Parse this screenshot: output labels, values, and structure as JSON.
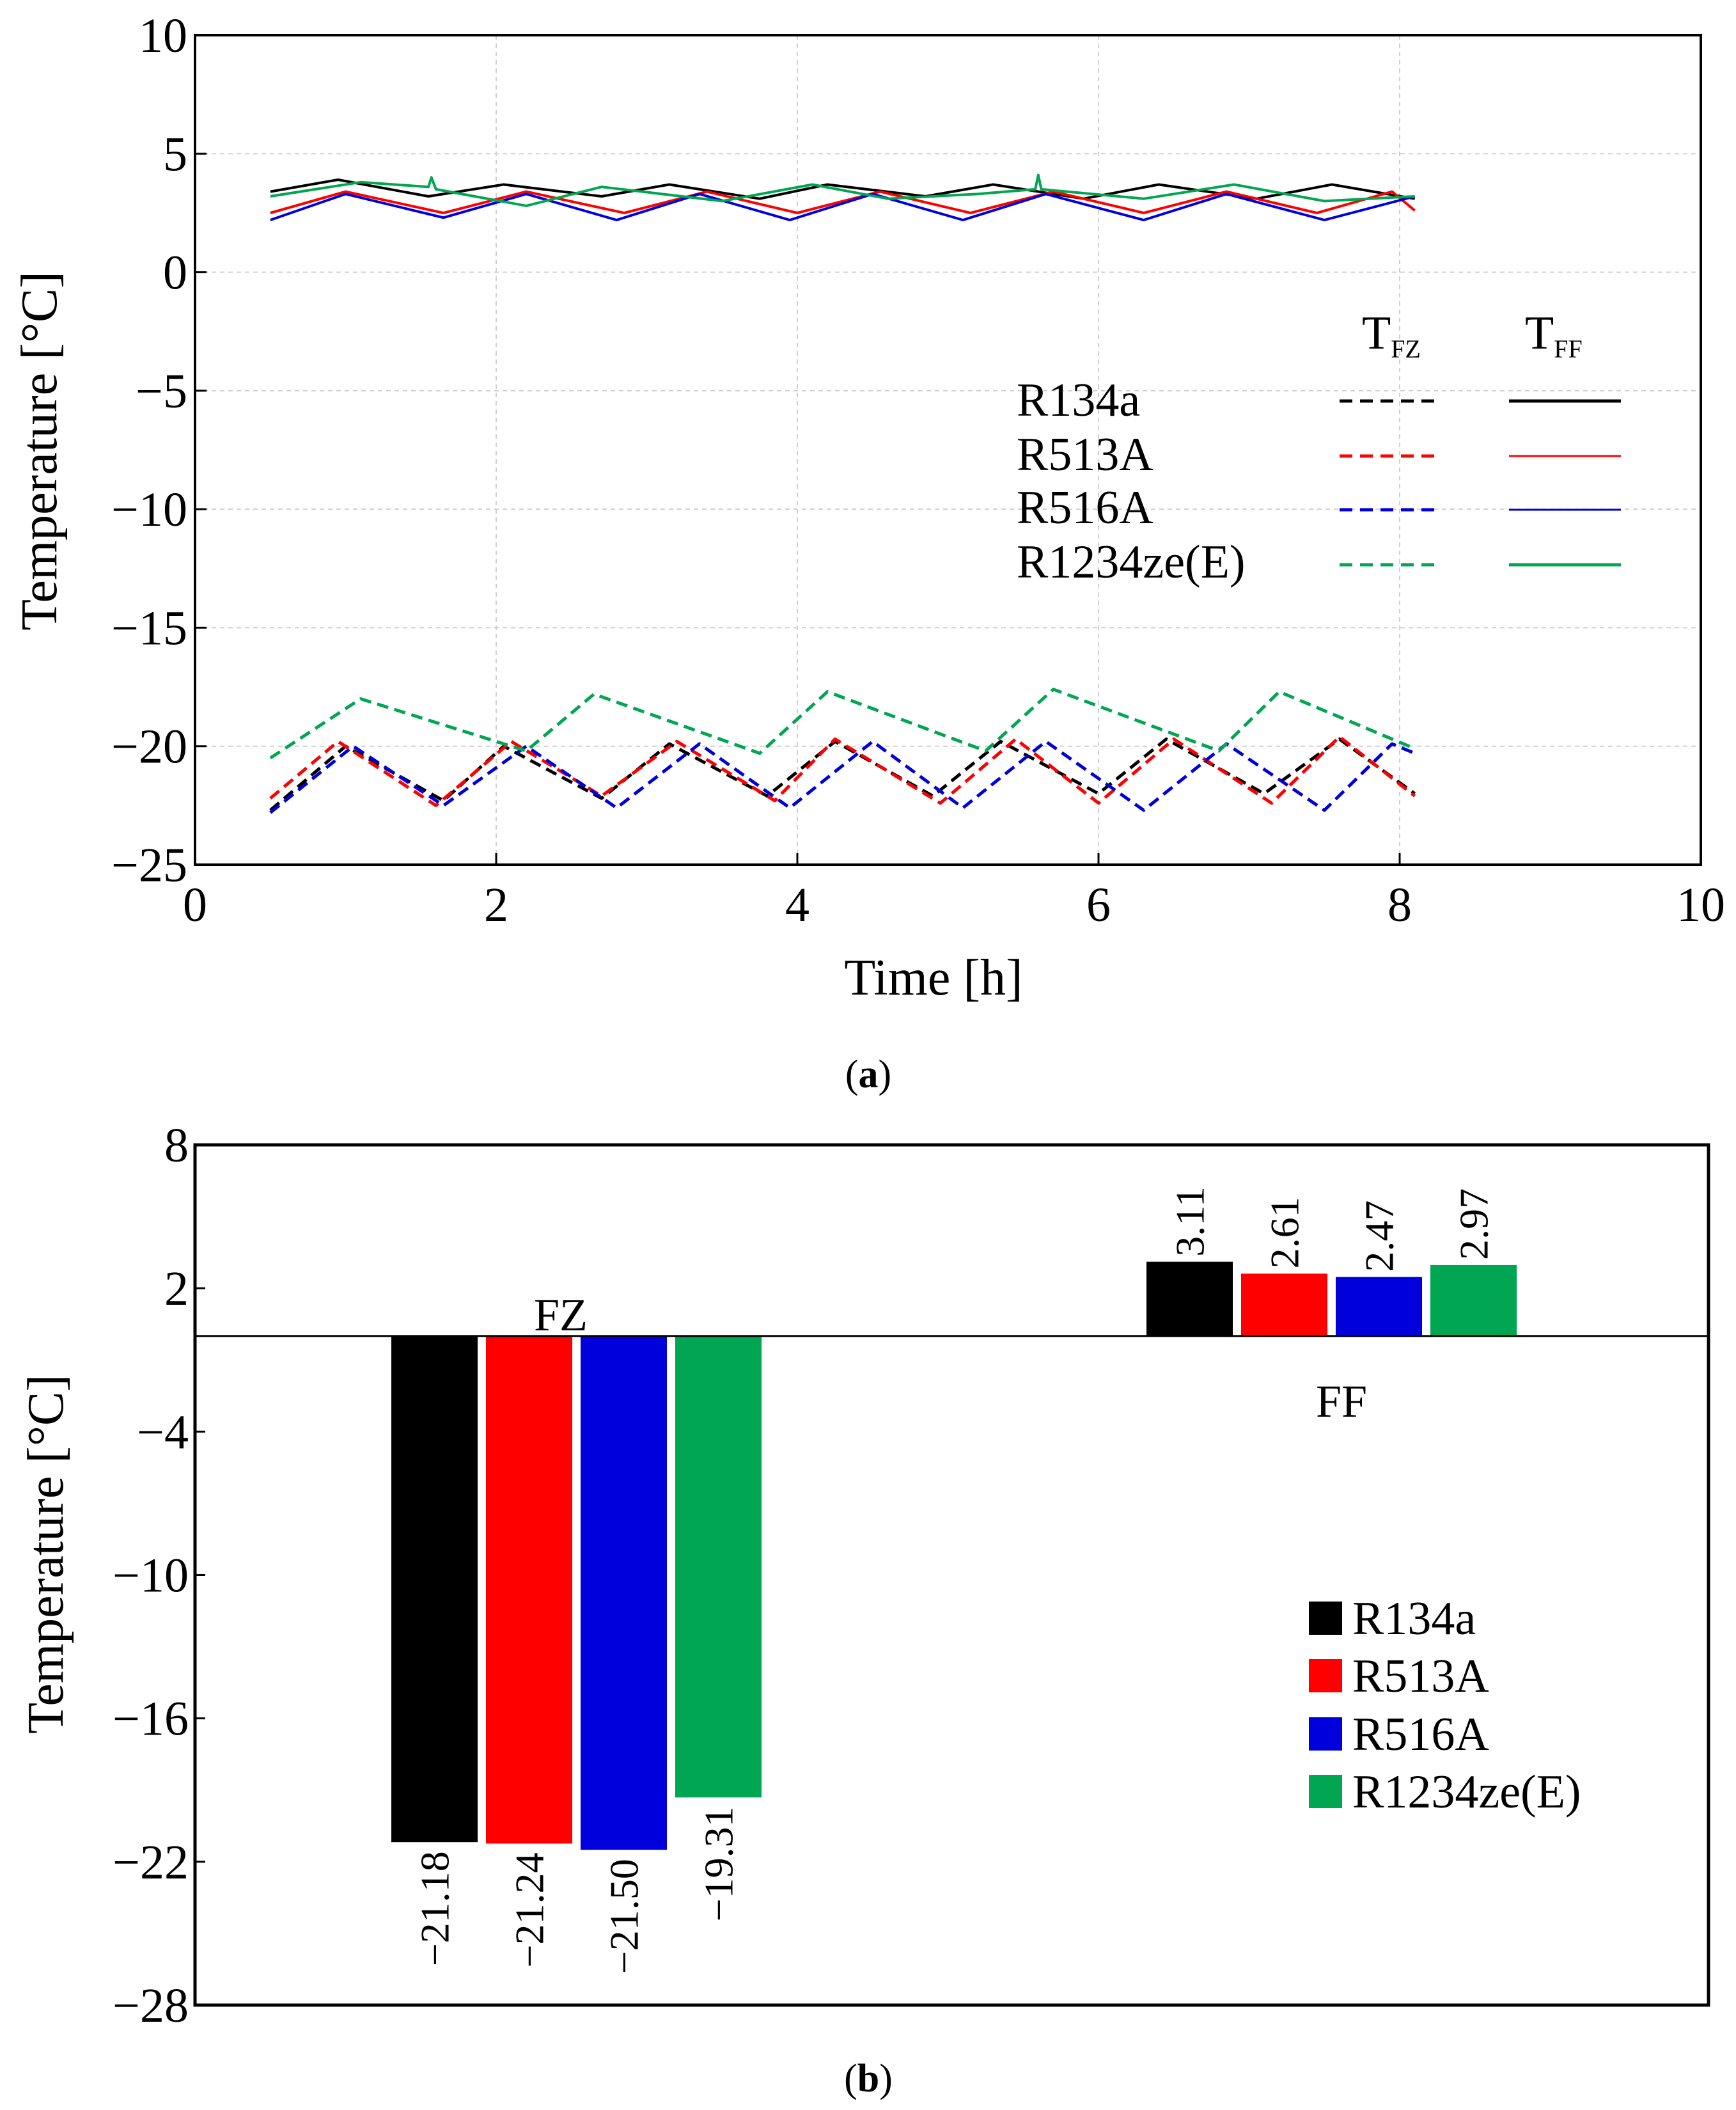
{
  "chart_data": [
    {
      "panel": "(a)",
      "panel_letter": "a",
      "type": "line",
      "xlabel": "Time [h]",
      "ylabel": "Temperature [°C]",
      "xlim": [
        0,
        10
      ],
      "ylim": [
        -25,
        10
      ],
      "xticks": [
        "0",
        "2",
        "4",
        "6",
        "8",
        "10"
      ],
      "yticks": [
        "10",
        "5",
        "0",
        "−5",
        "−10",
        "−15",
        "−20",
        "−25"
      ],
      "grid": true,
      "legend": {
        "position": "right",
        "col_headers": [
          {
            "main": "T",
            "sub": "FZ"
          },
          {
            "main": "T",
            "sub": "FF"
          }
        ],
        "entries": [
          "R134a",
          "R513A",
          "R516A",
          "R1234ze(E)"
        ],
        "colors": [
          "#000000",
          "#ff0000",
          "#0000dd",
          "#00a651"
        ]
      },
      "series": [
        {
          "name": "R134a",
          "compartment": "FF",
          "style": "solid",
          "color": "#000000",
          "x": [
            0.5,
            0.95,
            1.55,
            2.05,
            2.7,
            3.15,
            3.75,
            4.2,
            4.85,
            5.3,
            5.9,
            6.4,
            7.05,
            7.55,
            8.1
          ],
          "y": [
            3.4,
            3.9,
            3.2,
            3.7,
            3.2,
            3.7,
            3.1,
            3.7,
            3.2,
            3.7,
            3.1,
            3.7,
            3.1,
            3.7,
            3.1
          ]
        },
        {
          "name": "R513A",
          "compartment": "FF",
          "style": "solid",
          "color": "#ff0000",
          "x": [
            0.5,
            1.0,
            1.65,
            2.2,
            2.85,
            3.4,
            4.0,
            4.55,
            5.15,
            5.7,
            6.3,
            6.85,
            7.45,
            7.95,
            8.1
          ],
          "y": [
            2.5,
            3.4,
            2.5,
            3.4,
            2.5,
            3.4,
            2.5,
            3.4,
            2.5,
            3.4,
            2.5,
            3.4,
            2.5,
            3.4,
            2.6
          ]
        },
        {
          "name": "R516A",
          "compartment": "FF",
          "style": "solid",
          "color": "#0000dd",
          "x": [
            0.5,
            1.0,
            1.65,
            2.2,
            2.8,
            3.35,
            3.95,
            4.5,
            5.1,
            5.65,
            6.3,
            6.85,
            7.5,
            8.1
          ],
          "y": [
            2.2,
            3.3,
            2.3,
            3.3,
            2.2,
            3.3,
            2.2,
            3.3,
            2.2,
            3.3,
            2.2,
            3.3,
            2.2,
            3.2
          ]
        },
        {
          "name": "R1234ze(E)",
          "compartment": "FF",
          "style": "solid",
          "color": "#00a651",
          "x": [
            0.5,
            1.1,
            1.55,
            1.57,
            1.6,
            2.2,
            2.7,
            3.5,
            4.1,
            4.6,
            5.2,
            5.58,
            5.6,
            5.62,
            6.3,
            6.9,
            7.5,
            8.1
          ],
          "y": [
            3.2,
            3.8,
            3.6,
            4.0,
            3.5,
            2.8,
            3.6,
            3.0,
            3.7,
            3.1,
            3.3,
            3.5,
            4.1,
            3.5,
            3.1,
            3.7,
            3.0,
            3.2
          ]
        },
        {
          "name": "R134a",
          "compartment": "FZ",
          "style": "dashed",
          "color": "#000000",
          "x": [
            0.5,
            1.0,
            1.65,
            2.05,
            2.7,
            3.15,
            3.8,
            4.25,
            4.9,
            5.35,
            6.0,
            6.45,
            7.1,
            7.6,
            8.1
          ],
          "y": [
            -22.7,
            -20.0,
            -22.3,
            -20.0,
            -22.2,
            -19.9,
            -22.1,
            -19.8,
            -22.1,
            -19.8,
            -22.0,
            -19.7,
            -22.0,
            -19.7,
            -22.0
          ]
        },
        {
          "name": "R513A",
          "compartment": "FZ",
          "style": "dashed",
          "color": "#ff0000",
          "x": [
            0.5,
            0.95,
            1.6,
            2.1,
            2.7,
            3.2,
            3.85,
            4.25,
            4.95,
            5.45,
            6.0,
            6.5,
            7.15,
            7.6,
            8.1
          ],
          "y": [
            -22.2,
            -19.8,
            -22.5,
            -19.8,
            -22.1,
            -19.8,
            -22.3,
            -19.7,
            -22.4,
            -19.7,
            -22.4,
            -19.7,
            -22.4,
            -19.6,
            -22.1
          ]
        },
        {
          "name": "R516A",
          "compartment": "FZ",
          "style": "dashed",
          "color": "#0000dd",
          "x": [
            0.5,
            1.05,
            1.65,
            2.2,
            2.8,
            3.35,
            3.95,
            4.5,
            5.1,
            5.65,
            6.3,
            6.85,
            7.5,
            7.95,
            8.1
          ],
          "y": [
            -22.8,
            -20.0,
            -22.5,
            -20.0,
            -22.6,
            -19.9,
            -22.6,
            -19.8,
            -22.6,
            -19.8,
            -22.7,
            -19.9,
            -22.7,
            -19.9,
            -20.3
          ]
        },
        {
          "name": "R1234ze(E)",
          "compartment": "FZ",
          "style": "dashed",
          "color": "#00a651",
          "x": [
            0.5,
            1.1,
            2.2,
            2.65,
            3.75,
            4.2,
            5.25,
            5.7,
            6.8,
            7.2,
            8.1
          ],
          "y": [
            -20.5,
            -18.0,
            -20.2,
            -17.8,
            -20.3,
            -17.7,
            -20.2,
            -17.6,
            -20.2,
            -17.7,
            -20.1
          ]
        }
      ]
    },
    {
      "panel": "(b)",
      "panel_letter": "b",
      "type": "bar",
      "ylabel": "Temperature [°C]",
      "ylim": [
        -28,
        8
      ],
      "yticks": [
        "8",
        "2",
        "−4",
        "−10",
        "−16",
        "−22",
        "−28"
      ],
      "baseline": 0,
      "grid": false,
      "legend": {
        "position": "bottom-right",
        "entries": [
          "R134a",
          "R513A",
          "R516A",
          "R1234ze(E)"
        ],
        "colors": [
          "#000000",
          "#ff0000",
          "#0000dd",
          "#00a651"
        ]
      },
      "groups": [
        {
          "name": "FZ",
          "values": [
            -21.18,
            -21.24,
            -21.5,
            -19.31
          ],
          "labels": [
            "−21.18",
            "−21.24",
            "−21.50",
            "−19.31"
          ]
        },
        {
          "name": "FF",
          "values": [
            3.11,
            2.61,
            2.47,
            2.97
          ],
          "labels": [
            "3.11",
            "2.61",
            "2.47",
            "2.97"
          ]
        }
      ]
    }
  ]
}
